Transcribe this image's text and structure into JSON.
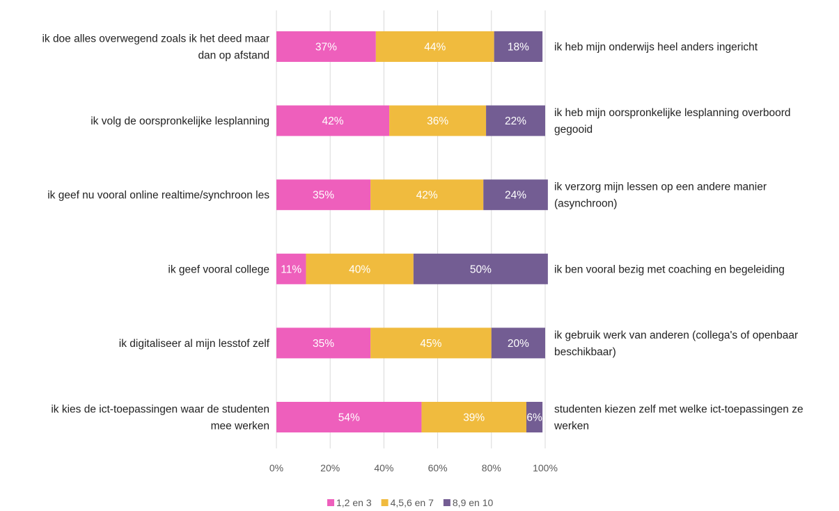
{
  "chart_data": {
    "type": "bar",
    "orientation": "horizontal",
    "stacked": "100%",
    "categories_left": [
      "ik doe alles overwegend zoals ik het deed maar dan op afstand",
      "ik volg de oorspronkelijke lesplanning",
      "ik geef nu vooral online realtime/synchroon les",
      "ik geef vooral college",
      "ik digitaliseer al mijn lesstof zelf",
      "ik kies de ict-toepassingen waar de studenten mee werken"
    ],
    "categories_right": [
      "ik heb mijn onderwijs heel anders ingericht",
      "ik heb mijn oorspronkelijke lesplanning overboord gegooid",
      "ik verzorg mijn lessen op een andere manier (asynchroon)",
      "ik ben vooral bezig met coaching en begeleiding",
      "ik gebruik werk van anderen (collega's of openbaar beschikbaar)",
      "studenten kiezen zelf met welke ict-toepassingen ze werken"
    ],
    "series": [
      {
        "name": "1,2 en 3",
        "color": "#ee5fbc",
        "values": [
          37,
          42,
          35,
          11,
          35,
          54
        ],
        "labels": [
          "37%",
          "42%",
          "35%",
          "11%",
          "35%",
          "54%"
        ]
      },
      {
        "name": "4,5,6 en 7",
        "color": "#f0bb3e",
        "values": [
          44,
          36,
          42,
          40,
          45,
          39
        ],
        "labels": [
          "44%",
          "36%",
          "42%",
          "40%",
          "45%",
          "39%"
        ]
      },
      {
        "name": "8,9 en 10",
        "color": "#735d93",
        "values": [
          18,
          22,
          24,
          50,
          20,
          6
        ],
        "labels": [
          "18%",
          "22%",
          "24%",
          "50%",
          "20%",
          "6%"
        ]
      }
    ],
    "xlim": [
      0,
      100
    ],
    "xticks": [
      "0%",
      "20%",
      "40%",
      "60%",
      "80%",
      "100%"
    ],
    "grid": true,
    "legend": "bottom"
  }
}
